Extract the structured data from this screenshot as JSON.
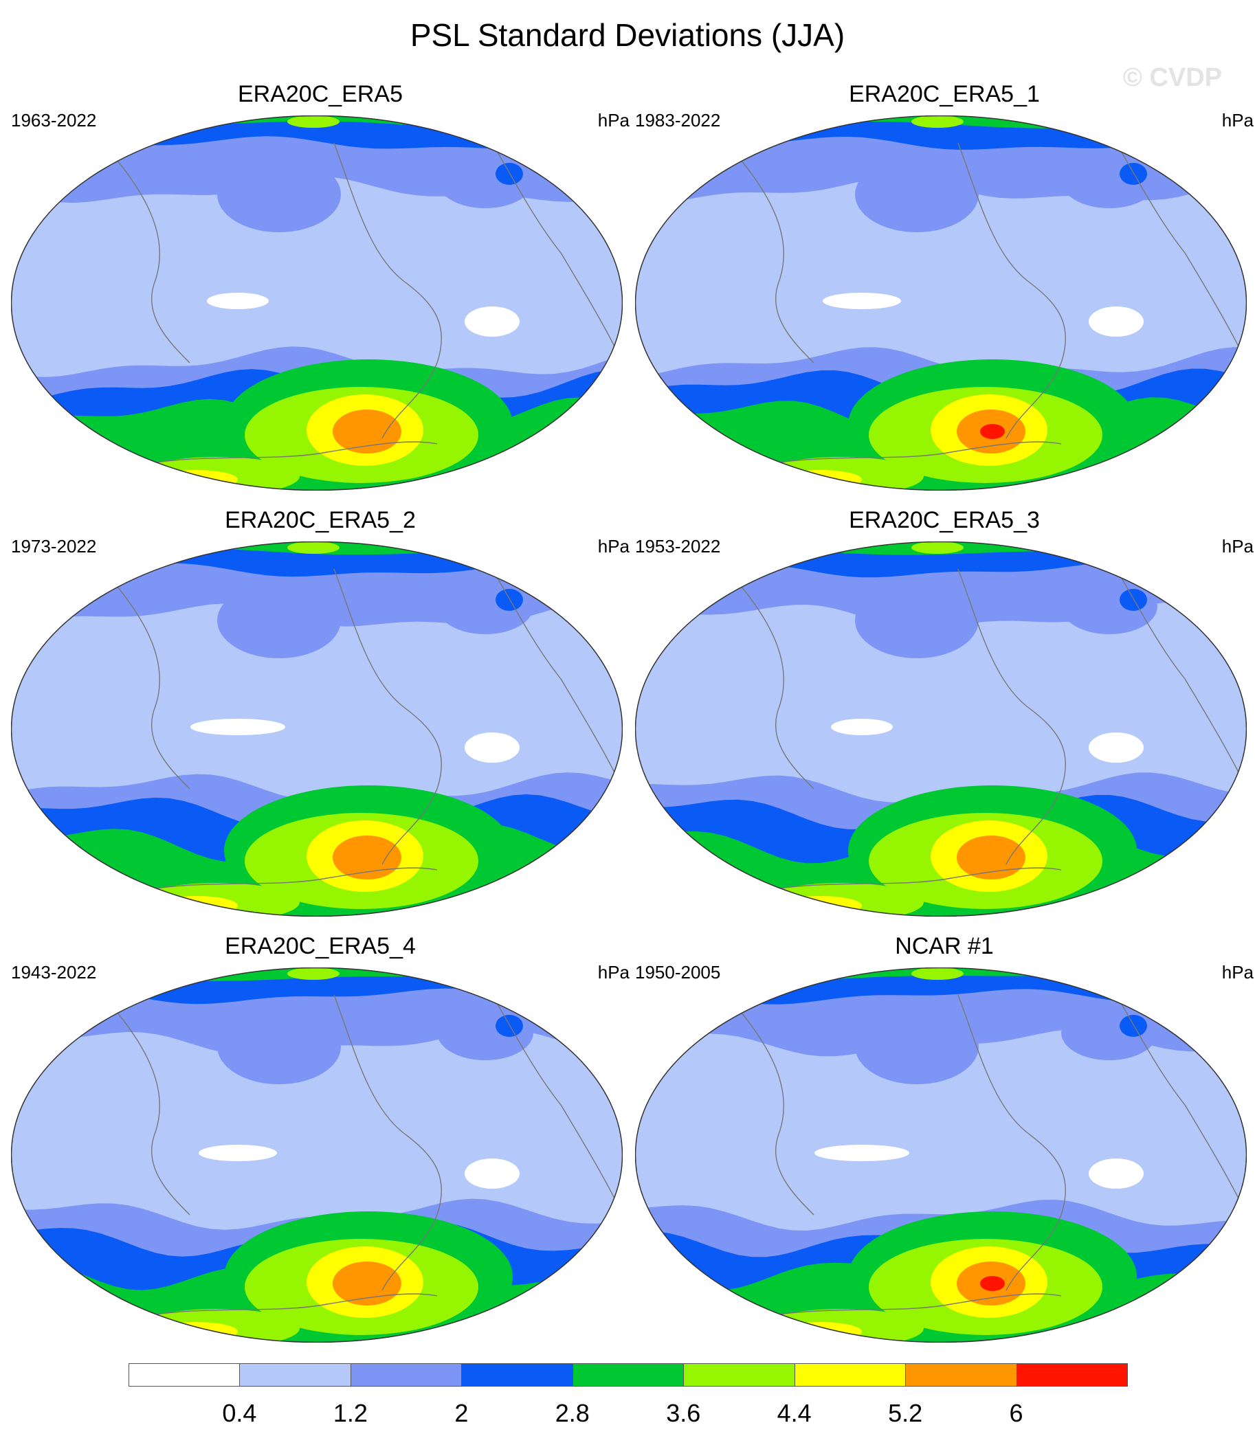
{
  "title": "PSL Standard Deviations (JJA)",
  "watermark": "© CVDP",
  "panels": [
    {
      "title": "ERA20C_ERA5",
      "years": "1963-2022",
      "units": "hPa",
      "peak": "orange"
    },
    {
      "title": "ERA20C_ERA5_1",
      "years": "1983-2022",
      "units": "hPa",
      "peak": "red"
    },
    {
      "title": "ERA20C_ERA5_2",
      "years": "1973-2022",
      "units": "hPa",
      "peak": "orange"
    },
    {
      "title": "ERA20C_ERA5_3",
      "years": "1953-2022",
      "units": "hPa",
      "peak": "orange"
    },
    {
      "title": "ERA20C_ERA5_4",
      "years": "1943-2022",
      "units": "hPa",
      "peak": "orange"
    },
    {
      "title": "NCAR #1",
      "years": "1950-2005",
      "units": "hPa",
      "peak": "red"
    }
  ],
  "colorbar": {
    "labels": [
      "0.4",
      "1.2",
      "2",
      "2.8",
      "3.6",
      "4.4",
      "5.2",
      "6"
    ],
    "colors": [
      "#ffffff",
      "#b4c8fa",
      "#7d96f5",
      "#0a5af5",
      "#00c832",
      "#96f500",
      "#ffff00",
      "#ff9600",
      "#ff1400"
    ]
  },
  "colors": {
    "white": "#ffffff",
    "light_blue": "#b4c8fa",
    "mid_blue": "#7d96f5",
    "blue": "#0a5af5",
    "green": "#00c832",
    "lime": "#96f500",
    "yellow": "#ffff00",
    "orange": "#ff9600",
    "red": "#ff1400",
    "coast": "#777777"
  }
}
